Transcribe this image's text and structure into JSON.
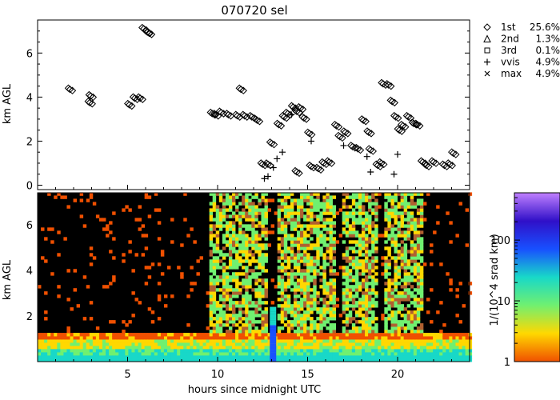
{
  "chart_data": [
    {
      "type": "scatter",
      "title": "070720 sel",
      "xlabel": "",
      "ylabel": "km AGL",
      "xlim": [
        0,
        24
      ],
      "ylim": [
        -0.2,
        7.5
      ],
      "y_ticks": [
        0,
        2,
        4,
        6
      ],
      "grid": false,
      "legend_position": "right",
      "legend": [
        {
          "marker": "diamond",
          "name": "1st",
          "value": "25.6%"
        },
        {
          "marker": "triangle",
          "name": "2nd",
          "value": "1.3%"
        },
        {
          "marker": "square",
          "name": "3rd",
          "value": "0.1%"
        },
        {
          "marker": "plus",
          "name": "vvis",
          "value": "4.9%"
        },
        {
          "marker": "cross",
          "name": "max",
          "value": "4.9%"
        }
      ],
      "series": [
        {
          "name": "1st",
          "marker": "diamond",
          "points": [
            [
              1.8,
              4.35
            ],
            [
              2.9,
              3.75
            ],
            [
              2.95,
              4.05
            ],
            [
              5.1,
              3.65
            ],
            [
              5.4,
              3.95
            ],
            [
              5.7,
              3.95
            ],
            [
              5.9,
              7.1
            ],
            [
              6.1,
              6.95
            ],
            [
              6.2,
              6.9
            ],
            [
              9.7,
              3.25
            ],
            [
              9.9,
              3.2
            ],
            [
              10.2,
              3.3
            ],
            [
              10.6,
              3.2
            ],
            [
              11.1,
              3.15
            ],
            [
              11.3,
              4.35
            ],
            [
              11.5,
              3.15
            ],
            [
              11.9,
              3.1
            ],
            [
              12.2,
              2.95
            ],
            [
              12.5,
              0.95
            ],
            [
              12.8,
              0.95
            ],
            [
              13.0,
              1.9
            ],
            [
              13.4,
              2.75
            ],
            [
              13.7,
              3.1
            ],
            [
              13.9,
              3.25
            ],
            [
              14.2,
              3.55
            ],
            [
              14.4,
              3.35
            ],
            [
              14.6,
              3.5
            ],
            [
              14.8,
              3.05
            ],
            [
              15.1,
              2.35
            ],
            [
              14.4,
              0.6
            ],
            [
              15.2,
              0.85
            ],
            [
              15.6,
              0.75
            ],
            [
              15.9,
              1.0
            ],
            [
              16.2,
              1.05
            ],
            [
              16.6,
              2.7
            ],
            [
              16.8,
              2.2
            ],
            [
              17.1,
              2.4
            ],
            [
              17.5,
              1.75
            ],
            [
              17.8,
              1.65
            ],
            [
              18.1,
              2.95
            ],
            [
              18.4,
              2.4
            ],
            [
              18.5,
              1.6
            ],
            [
              18.9,
              0.9
            ],
            [
              19.1,
              1.0
            ],
            [
              19.2,
              4.6
            ],
            [
              19.5,
              4.55
            ],
            [
              19.7,
              3.8
            ],
            [
              19.9,
              3.1
            ],
            [
              20.1,
              2.5
            ],
            [
              20.3,
              2.7
            ],
            [
              20.6,
              3.1
            ],
            [
              20.9,
              2.8
            ],
            [
              21.1,
              2.75
            ],
            [
              21.4,
              1.05
            ],
            [
              21.6,
              0.9
            ],
            [
              22.0,
              1.05
            ],
            [
              22.6,
              0.9
            ],
            [
              22.9,
              0.95
            ],
            [
              23.1,
              1.45
            ]
          ]
        },
        {
          "name": "vvis",
          "marker": "plus",
          "points": [
            [
              12.6,
              0.3
            ],
            [
              12.8,
              0.4
            ],
            [
              13.1,
              0.8
            ],
            [
              13.3,
              1.2
            ],
            [
              13.6,
              1.5
            ],
            [
              14.1,
              3.2
            ],
            [
              15.2,
              2.0
            ],
            [
              17.0,
              1.8
            ],
            [
              18.3,
              1.3
            ],
            [
              18.5,
              0.6
            ],
            [
              19.8,
              0.5
            ],
            [
              20.0,
              1.4
            ]
          ]
        }
      ]
    },
    {
      "type": "heatmap",
      "xlabel": "hours since midnight UTC",
      "ylabel": "km AGL",
      "xlim": [
        0,
        24
      ],
      "ylim": [
        0,
        7.4
      ],
      "x_ticks": [
        5,
        10,
        15,
        20
      ],
      "y_ticks": [
        2,
        4,
        6
      ],
      "colorbar": {
        "label": "1/(10^4 srad km)",
        "scale": "log",
        "range": [
          1,
          600
        ],
        "ticks": [
          "1",
          "10",
          "100"
        ],
        "colors": [
          "#f05000",
          "#ffd800",
          "#70f070",
          "#18d8c8",
          "#1850ff",
          "#3010c8",
          "#c080ff"
        ]
      },
      "background_color": "#000000"
    }
  ]
}
